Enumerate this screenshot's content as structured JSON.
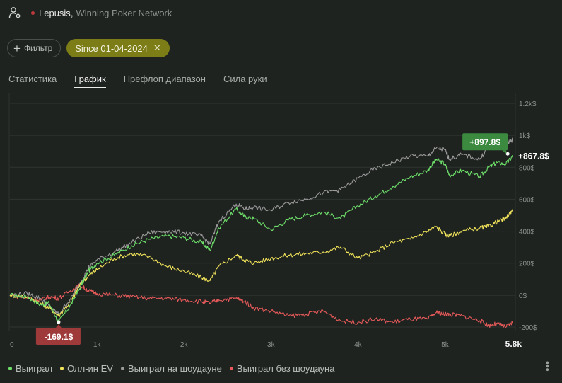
{
  "header": {
    "player": "Lepusis",
    "separator": ",",
    "network": "Winning Poker Network",
    "user_icon": "user-settings-icon"
  },
  "filters": {
    "filter_label": "Фильтр",
    "date_chip": "Since 01-04-2024",
    "close_icon": "close-icon"
  },
  "tabs": [
    {
      "label": "Статистика",
      "active": false
    },
    {
      "label": "График",
      "active": true
    },
    {
      "label": "Префлоп диапазон",
      "active": false
    },
    {
      "label": "Сила руки",
      "active": false
    }
  ],
  "colors": {
    "won": "#6ee06a",
    "allin_ev": "#f0e35a",
    "showdown": "#9a9a9a",
    "nonshowdown": "#e85a5a",
    "min_badge": "#9e3a3a",
    "max_badge": "#3c8a40"
  },
  "chart_data": {
    "type": "line",
    "title": "",
    "xlabel": "",
    "ylabel": "",
    "x_ticks": [
      "0",
      "1k",
      "2k",
      "3k",
      "4k",
      "5k"
    ],
    "x_max": 5800,
    "x_max_label": "5.8k",
    "y_ticks": [
      "1.2k$",
      "1k$",
      "800$",
      "600$",
      "400$",
      "200$",
      "0$",
      "-200$"
    ],
    "ylim": [
      -200,
      1200
    ],
    "series": [
      {
        "name": "Выиграл",
        "color_key": "won",
        "x": [
          0,
          200,
          350,
          450,
          560,
          700,
          800,
          900,
          1000,
          1200,
          1400,
          1600,
          1800,
          2000,
          2200,
          2300,
          2400,
          2600,
          2700,
          2800,
          3000,
          3200,
          3400,
          3600,
          3800,
          4000,
          4200,
          4400,
          4600,
          4800,
          4900,
          5000,
          5050,
          5200,
          5400,
          5500,
          5600,
          5700,
          5780
        ],
        "values": [
          0,
          -10,
          -60,
          -50,
          -169,
          -60,
          40,
          150,
          200,
          250,
          310,
          350,
          370,
          360,
          330,
          280,
          420,
          540,
          490,
          480,
          410,
          470,
          500,
          520,
          480,
          560,
          620,
          680,
          740,
          780,
          850,
          820,
          750,
          780,
          740,
          800,
          830,
          820,
          870
        ]
      },
      {
        "name": "Олл-ин EV",
        "color_key": "allin_ev",
        "x": [
          0,
          200,
          350,
          450,
          560,
          700,
          800,
          900,
          1000,
          1200,
          1400,
          1600,
          1800,
          2000,
          2200,
          2300,
          2400,
          2600,
          2700,
          2800,
          3000,
          3200,
          3400,
          3600,
          3800,
          4000,
          4200,
          4400,
          4600,
          4800,
          4900,
          5000,
          5050,
          5200,
          5400,
          5500,
          5600,
          5700,
          5780
        ],
        "values": [
          0,
          -10,
          -50,
          -80,
          -130,
          -40,
          60,
          120,
          160,
          230,
          260,
          240,
          180,
          150,
          110,
          90,
          180,
          250,
          220,
          200,
          230,
          250,
          260,
          270,
          300,
          230,
          270,
          330,
          350,
          400,
          430,
          380,
          370,
          400,
          420,
          430,
          460,
          480,
          540
        ]
      },
      {
        "name": "Выиграл на шоудауне",
        "color_key": "showdown",
        "x": [
          0,
          200,
          350,
          450,
          560,
          700,
          800,
          900,
          1000,
          1200,
          1400,
          1600,
          1800,
          2000,
          2200,
          2300,
          2400,
          2600,
          2700,
          2800,
          3000,
          3200,
          3400,
          3600,
          3800,
          4000,
          4200,
          4400,
          4600,
          4800,
          4900,
          5000,
          5050,
          5200,
          5400,
          5500,
          5600,
          5700,
          5780
        ],
        "values": [
          0,
          10,
          -20,
          -70,
          -120,
          -20,
          70,
          170,
          220,
          270,
          330,
          390,
          400,
          390,
          370,
          320,
          460,
          570,
          540,
          550,
          530,
          580,
          600,
          640,
          660,
          730,
          790,
          830,
          870,
          870,
          920,
          910,
          850,
          880,
          850,
          930,
          940,
          960,
          970
        ]
      },
      {
        "name": "Выиграл без шоудауна",
        "color_key": "nonshowdown",
        "x": [
          0,
          200,
          350,
          450,
          560,
          700,
          800,
          900,
          1000,
          1200,
          1400,
          1600,
          1800,
          2000,
          2200,
          2300,
          2400,
          2600,
          2700,
          2800,
          3000,
          3200,
          3400,
          3600,
          3800,
          4000,
          4200,
          4400,
          4600,
          4800,
          4900,
          5000,
          5050,
          5200,
          5400,
          5500,
          5600,
          5700,
          5780
        ],
        "values": [
          0,
          -20,
          -30,
          -10,
          -20,
          30,
          60,
          30,
          10,
          0,
          -10,
          -20,
          -20,
          -30,
          -40,
          -50,
          -30,
          -20,
          -40,
          -80,
          -100,
          -130,
          -120,
          -100,
          -160,
          -170,
          -150,
          -170,
          -150,
          -150,
          -110,
          -120,
          -120,
          -130,
          -160,
          -190,
          -180,
          -200,
          -170
        ]
      }
    ],
    "min_annotation": {
      "label": "-169.1$",
      "x": 560,
      "value": -169.1
    },
    "max_annotation": {
      "label": "+897.8$",
      "x": 5720,
      "value": 897.8
    },
    "end_label": "+867.8$"
  },
  "legend": [
    {
      "label": "Выиграл",
      "color_key": "won"
    },
    {
      "label": "Олл-ин EV",
      "color_key": "allin_ev"
    },
    {
      "label": "Выиграл на шоудауне",
      "color_key": "showdown"
    },
    {
      "label": "Выиграл без шоудауна",
      "color_key": "nonshowdown"
    }
  ],
  "menu": {
    "more_icon": "more-vertical-icon"
  }
}
